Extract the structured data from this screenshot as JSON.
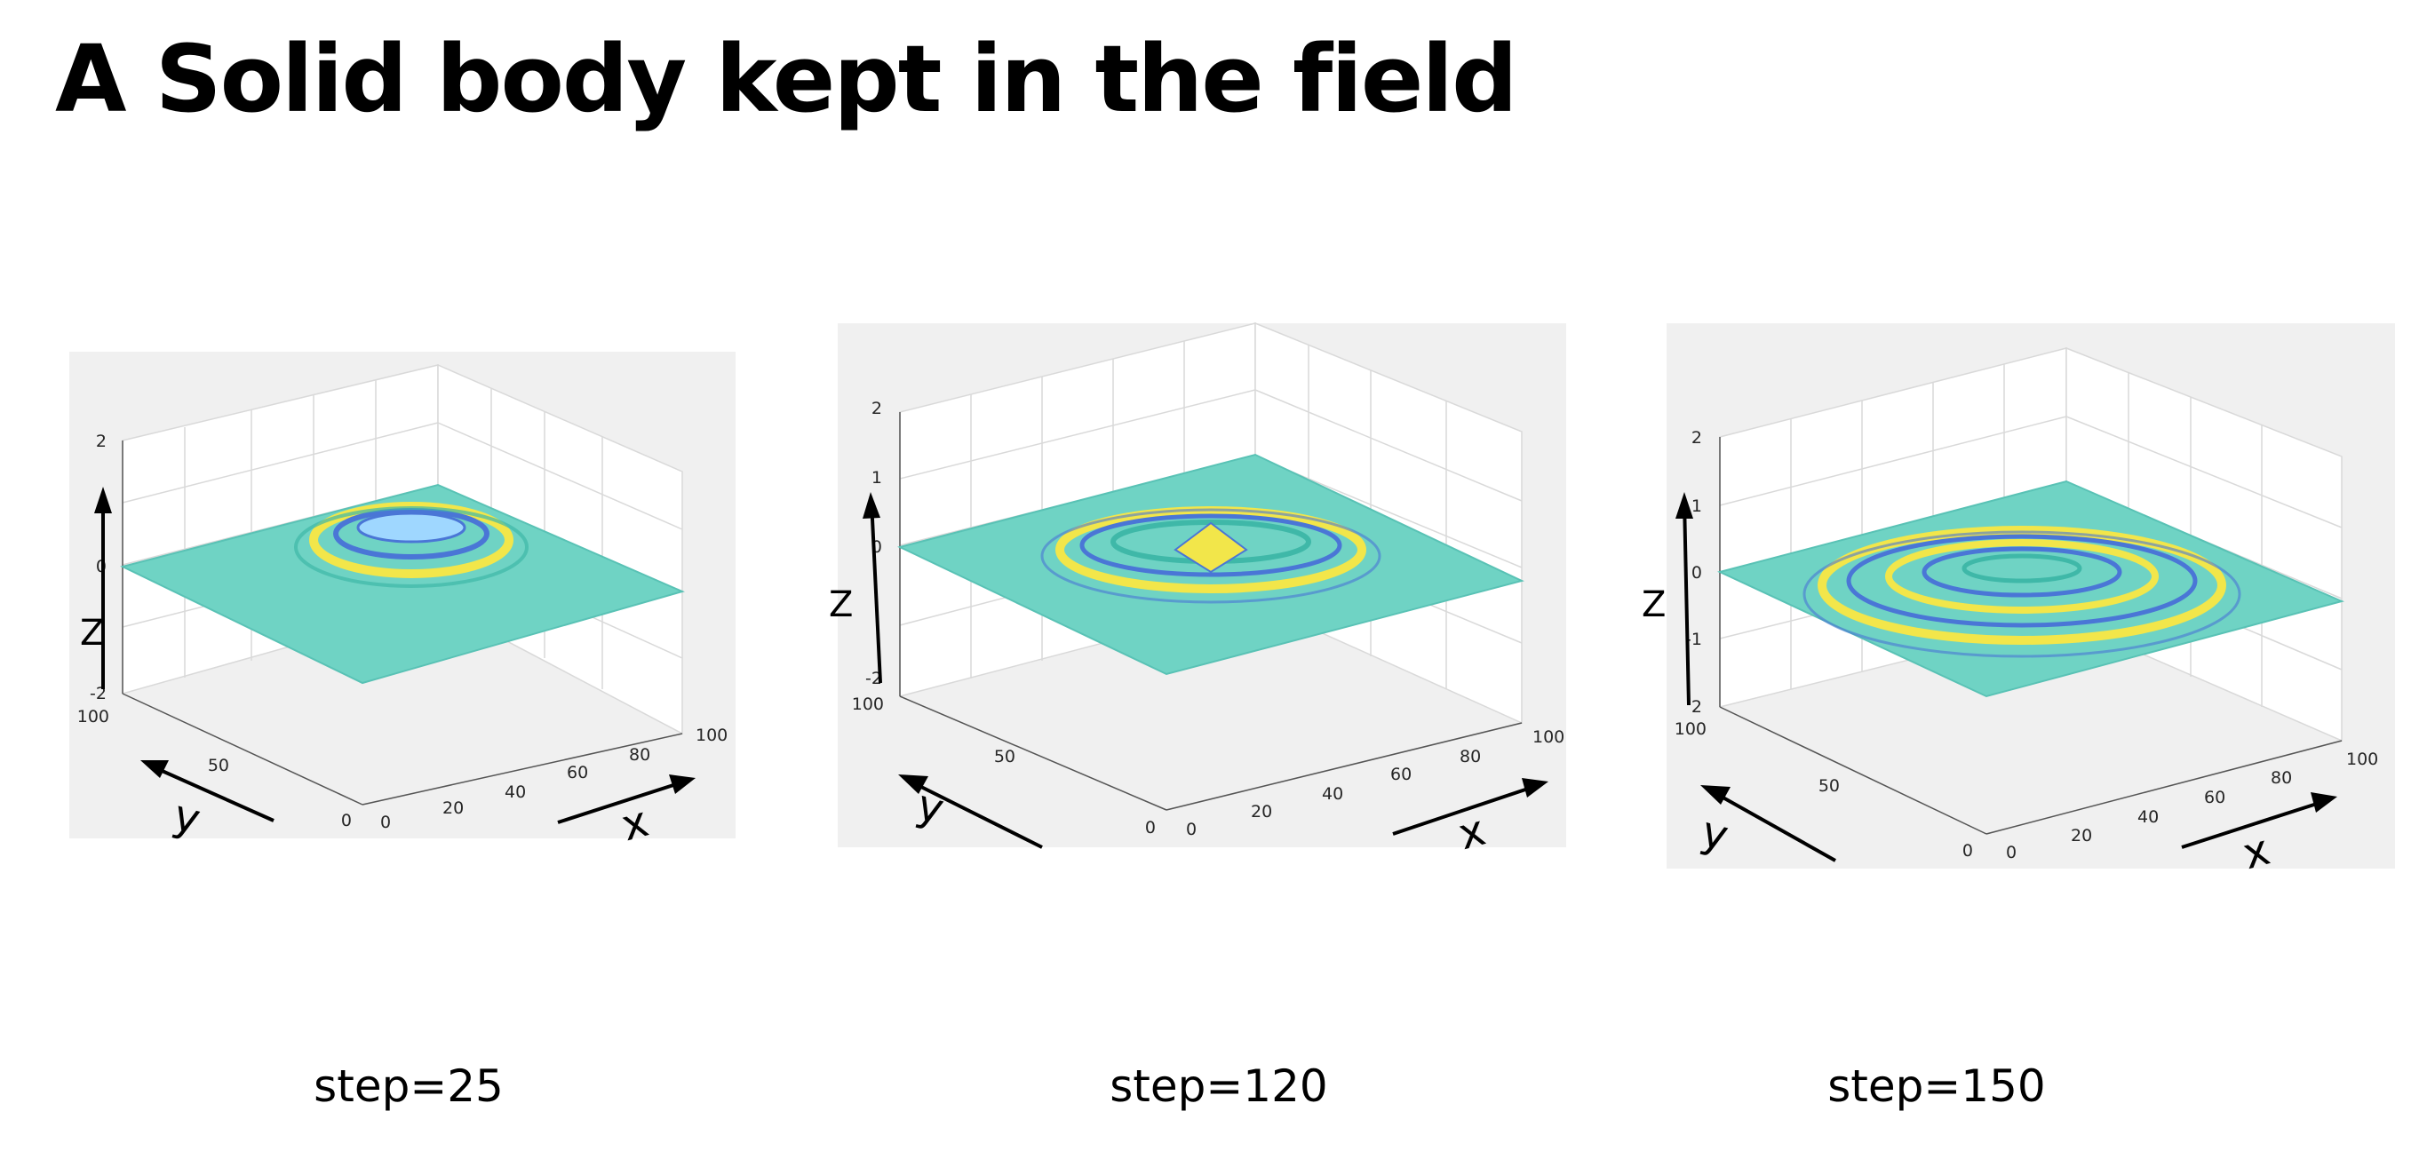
{
  "title": "A Solid body kept in the field",
  "panels": [
    {
      "caption": "step=25",
      "z_ticks": [
        "2",
        "0",
        "-2"
      ],
      "y_ticks": [
        "100",
        "50",
        "0"
      ],
      "x_ticks": [
        "0",
        "20",
        "40",
        "60",
        "80",
        "100"
      ],
      "x_label": "x",
      "y_label": "y",
      "z_label": "Z"
    },
    {
      "caption": "step=120",
      "z_ticks": [
        "2",
        "1",
        "0",
        "-2"
      ],
      "y_ticks": [
        "100",
        "50",
        "0"
      ],
      "x_ticks": [
        "0",
        "20",
        "40",
        "60",
        "80",
        "100"
      ],
      "x_label": "x",
      "y_label": "y",
      "z_label": "Z"
    },
    {
      "caption": "step=150",
      "z_ticks": [
        "2",
        "1",
        "0",
        "-1",
        "2"
      ],
      "y_ticks": [
        "100",
        "50",
        "0"
      ],
      "x_ticks": [
        "0",
        "20",
        "40",
        "60",
        "80",
        "100"
      ],
      "x_label": "x",
      "y_label": "y",
      "z_label": "Z"
    }
  ],
  "colors": {
    "surface": "#6fd3c4",
    "surface_edge": "#59c2b5",
    "ripple_yellow": "#f2e64a",
    "ripple_blue": "#4a76d6",
    "plot_bg": "#f0f0f0",
    "grid": "#d9d9d9"
  }
}
